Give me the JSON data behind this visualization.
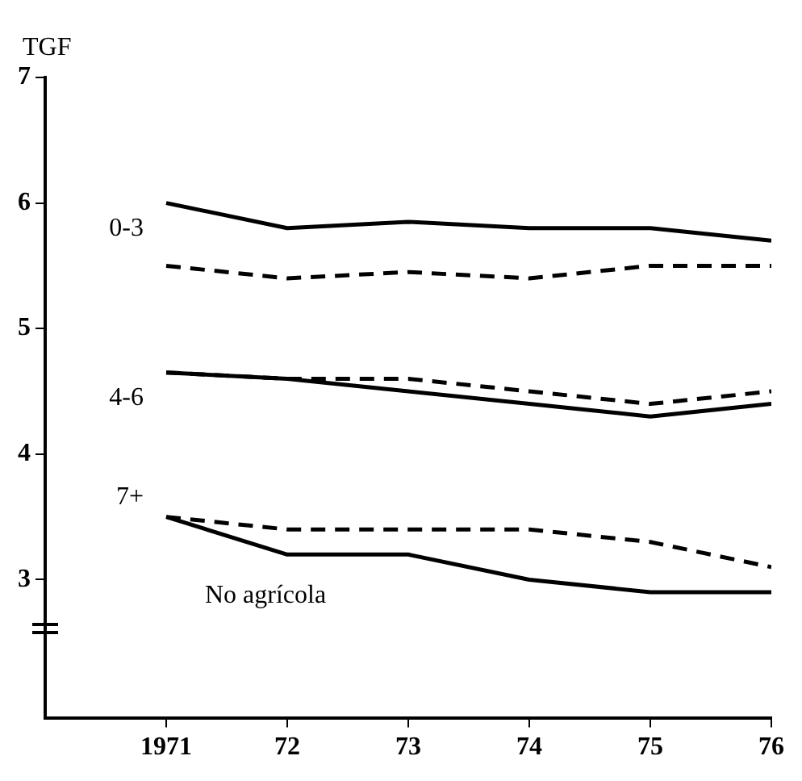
{
  "chart_data": {
    "type": "line",
    "ylabel": "TGF",
    "annotations": [
      "No agrícola"
    ],
    "x": [
      1971,
      1972,
      1973,
      1974,
      1975,
      1976
    ],
    "xlim": [
      1970,
      1976
    ],
    "xticks": [
      {
        "value": 1971,
        "label": "1971"
      },
      {
        "value": 1972,
        "label": "72"
      },
      {
        "value": 1973,
        "label": "73"
      },
      {
        "value": 1974,
        "label": "74"
      },
      {
        "value": 1975,
        "label": "75"
      },
      {
        "value": 1976,
        "label": "76"
      }
    ],
    "ylim": [
      1.9,
      7
    ],
    "yticks": [
      3,
      4,
      5,
      6,
      7
    ],
    "grid": false,
    "legend": false,
    "marker": "none",
    "series": [
      {
        "name": "0-3",
        "color": "#000000",
        "line_style": "solid",
        "values": [
          6.0,
          5.8,
          5.85,
          5.8,
          5.8,
          5.7
        ]
      },
      {
        "color": "#000000",
        "line_style": "dashed",
        "values": [
          5.5,
          5.4,
          5.45,
          5.4,
          5.5,
          5.5
        ]
      },
      {
        "name": "4-6",
        "color": "#000000",
        "line_style": "solid",
        "values": [
          4.65,
          4.6,
          4.5,
          4.4,
          4.3,
          4.4
        ]
      },
      {
        "color": "#000000",
        "line_style": "dashed",
        "values": [
          4.65,
          4.6,
          4.6,
          4.5,
          4.4,
          4.5
        ]
      },
      {
        "name": "7+",
        "color": "#000000",
        "line_style": "solid",
        "values": [
          3.5,
          3.2,
          3.2,
          3.0,
          2.9,
          2.9
        ]
      },
      {
        "color": "#000000",
        "line_style": "dashed",
        "values": [
          3.5,
          3.4,
          3.4,
          3.4,
          3.3,
          3.1
        ]
      }
    ]
  }
}
